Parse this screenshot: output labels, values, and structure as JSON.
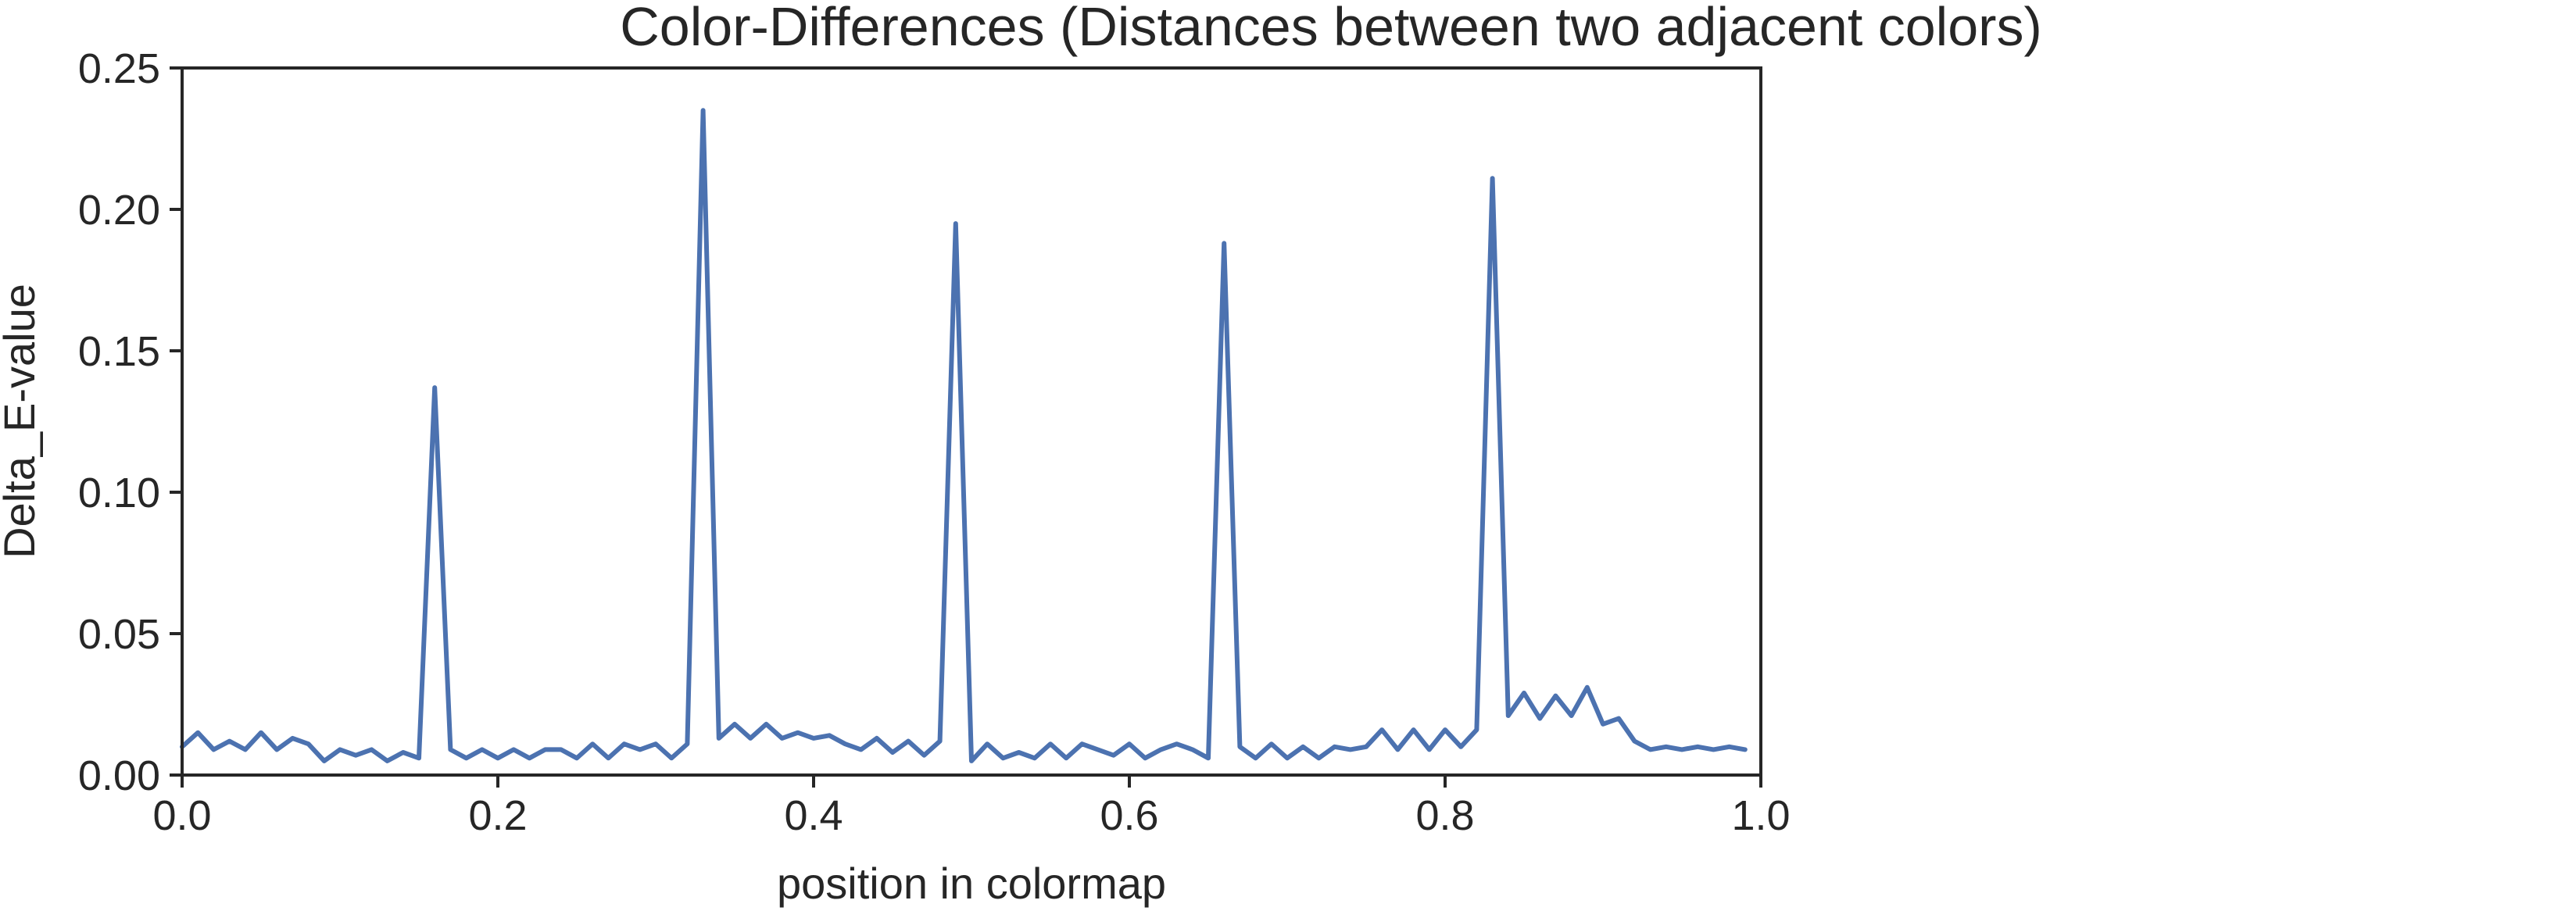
{
  "chart_data": {
    "type": "line",
    "title": "Color-Differences (Distances between two adjacent colors)",
    "xlabel": "position in colormap",
    "ylabel": "Delta_E-value",
    "xlim": [
      0.0,
      1.0
    ],
    "ylim": [
      0.0,
      0.25
    ],
    "x_ticks": [
      "0.0",
      "0.2",
      "0.4",
      "0.6",
      "0.8",
      "1.0"
    ],
    "y_ticks": [
      "0.00",
      "0.05",
      "0.10",
      "0.15",
      "0.20",
      "0.25"
    ],
    "grid": false,
    "line_color": "#4c72b0",
    "series": [
      {
        "x": [
          0.0,
          0.01,
          0.02,
          0.03,
          0.04,
          0.05,
          0.06,
          0.07,
          0.08,
          0.09,
          0.1,
          0.11,
          0.12,
          0.13,
          0.14,
          0.15,
          0.16,
          0.17,
          0.18,
          0.19,
          0.2,
          0.21,
          0.22,
          0.23,
          0.24,
          0.25,
          0.26,
          0.27,
          0.28,
          0.29,
          0.3,
          0.31,
          0.32,
          0.33,
          0.34,
          0.35,
          0.36,
          0.37,
          0.38,
          0.39,
          0.4,
          0.41,
          0.42,
          0.43,
          0.44,
          0.45,
          0.46,
          0.47,
          0.48,
          0.49,
          0.5,
          0.51,
          0.52,
          0.53,
          0.54,
          0.55,
          0.56,
          0.57,
          0.58,
          0.59,
          0.6,
          0.61,
          0.62,
          0.63,
          0.64,
          0.65,
          0.66,
          0.67,
          0.68,
          0.69,
          0.7,
          0.71,
          0.72,
          0.73,
          0.74,
          0.75,
          0.76,
          0.77,
          0.78,
          0.79,
          0.8,
          0.81,
          0.82,
          0.83,
          0.84,
          0.85,
          0.86,
          0.87,
          0.88,
          0.89,
          0.9,
          0.91,
          0.92,
          0.93,
          0.94,
          0.95,
          0.96,
          0.97,
          0.98,
          0.99
        ],
        "values": [
          0.01,
          0.015,
          0.009,
          0.012,
          0.009,
          0.015,
          0.009,
          0.013,
          0.011,
          0.005,
          0.009,
          0.007,
          0.009,
          0.005,
          0.008,
          0.006,
          0.137,
          0.009,
          0.006,
          0.009,
          0.006,
          0.009,
          0.006,
          0.009,
          0.009,
          0.006,
          0.011,
          0.006,
          0.011,
          0.009,
          0.011,
          0.006,
          0.011,
          0.235,
          0.013,
          0.018,
          0.013,
          0.018,
          0.013,
          0.015,
          0.013,
          0.014,
          0.011,
          0.009,
          0.013,
          0.008,
          0.012,
          0.007,
          0.012,
          0.195,
          0.005,
          0.011,
          0.006,
          0.008,
          0.006,
          0.011,
          0.006,
          0.011,
          0.009,
          0.007,
          0.011,
          0.006,
          0.009,
          0.011,
          0.009,
          0.006,
          0.188,
          0.01,
          0.006,
          0.011,
          0.006,
          0.01,
          0.006,
          0.01,
          0.009,
          0.01,
          0.016,
          0.009,
          0.016,
          0.009,
          0.016,
          0.01,
          0.016,
          0.211,
          0.021,
          0.029,
          0.02,
          0.028,
          0.021,
          0.031,
          0.018,
          0.02,
          0.012,
          0.009,
          0.01,
          0.009,
          0.01,
          0.009,
          0.01,
          0.009
        ]
      }
    ]
  }
}
